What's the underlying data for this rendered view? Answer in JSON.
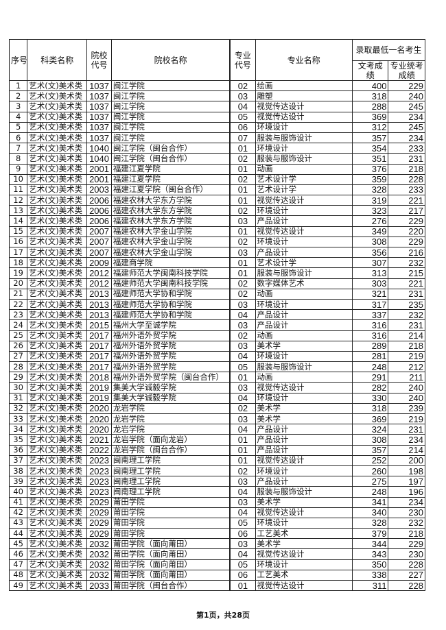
{
  "header": {
    "seq": "序号",
    "category": "科类名称",
    "school_code": "院校代号",
    "school_name": "院校名称",
    "major_code": "专业代号",
    "major_name": "专业名称",
    "group": "录取最低一名考生",
    "culture_score": "文考成绩",
    "art_score": "专业统考成绩"
  },
  "rows": [
    [
      "1",
      "艺术(文)美术类",
      "1037",
      "闽江学院",
      "02",
      "绘画",
      "400",
      "229"
    ],
    [
      "2",
      "艺术(文)美术类",
      "1037",
      "闽江学院",
      "03",
      "雕塑",
      "318",
      "240"
    ],
    [
      "3",
      "艺术(文)美术类",
      "1037",
      "闽江学院",
      "04",
      "视觉传达设计",
      "288",
      "245"
    ],
    [
      "4",
      "艺术(文)美术类",
      "1037",
      "闽江学院",
      "05",
      "视觉传达设计",
      "369",
      "234"
    ],
    [
      "5",
      "艺术(文)美术类",
      "1037",
      "闽江学院",
      "06",
      "环境设计",
      "312",
      "245"
    ],
    [
      "6",
      "艺术(文)美术类",
      "1037",
      "闽江学院",
      "07",
      "服装与服饰设计",
      "357",
      "234"
    ],
    [
      "7",
      "艺术(文)美术类",
      "1040",
      "闽江学院（闽台合作）",
      "01",
      "环境设计",
      "354",
      "233"
    ],
    [
      "8",
      "艺术(文)美术类",
      "1040",
      "闽江学院（闽台合作）",
      "02",
      "服装与服饰设计",
      "351",
      "231"
    ],
    [
      "9",
      "艺术(文)美术类",
      "2001",
      "福建江夏学院",
      "01",
      "动画",
      "376",
      "218"
    ],
    [
      "10",
      "艺术(文)美术类",
      "2001",
      "福建江夏学院",
      "02",
      "艺术设计学",
      "359",
      "228"
    ],
    [
      "11",
      "艺术(文)美术类",
      "2003",
      "福建江夏学院（闽台合作）",
      "01",
      "艺术设计学",
      "328",
      "233"
    ],
    [
      "12",
      "艺术(文)美术类",
      "2006",
      "福建农林大学东方学院",
      "01",
      "视觉传达设计",
      "319",
      "221"
    ],
    [
      "13",
      "艺术(文)美术类",
      "2006",
      "福建农林大学东方学院",
      "02",
      "环境设计",
      "323",
      "217"
    ],
    [
      "14",
      "艺术(文)美术类",
      "2006",
      "福建农林大学东方学院",
      "03",
      "产品设计",
      "276",
      "229"
    ],
    [
      "15",
      "艺术(文)美术类",
      "2007",
      "福建农林大学金山学院",
      "01",
      "视觉传达设计",
      "349",
      "220"
    ],
    [
      "16",
      "艺术(文)美术类",
      "2007",
      "福建农林大学金山学院",
      "02",
      "环境设计",
      "308",
      "229"
    ],
    [
      "17",
      "艺术(文)美术类",
      "2007",
      "福建农林大学金山学院",
      "03",
      "产品设计",
      "356",
      "216"
    ],
    [
      "18",
      "艺术(文)美术类",
      "2009",
      "福建商学院",
      "01",
      "艺术设计学",
      "307",
      "232"
    ],
    [
      "19",
      "艺术(文)美术类",
      "2012",
      "福建师范大学闽南科技学院",
      "01",
      "服装与服饰设计",
      "313",
      "215"
    ],
    [
      "20",
      "艺术(文)美术类",
      "2012",
      "福建师范大学闽南科技学院",
      "02",
      "数字媒体艺术",
      "303",
      "221"
    ],
    [
      "21",
      "艺术(文)美术类",
      "2013",
      "福建师范大学协和学院",
      "02",
      "动画",
      "321",
      "231"
    ],
    [
      "22",
      "艺术(文)美术类",
      "2013",
      "福建师范大学协和学院",
      "03",
      "环境设计",
      "317",
      "235"
    ],
    [
      "23",
      "艺术(文)美术类",
      "2013",
      "福建师范大学协和学院",
      "04",
      "产品设计",
      "337",
      "232"
    ],
    [
      "24",
      "艺术(文)美术类",
      "2015",
      "福州大学至诚学院",
      "03",
      "产品设计",
      "316",
      "231"
    ],
    [
      "25",
      "艺术(文)美术类",
      "2017",
      "福州外语外贸学院",
      "02",
      "动画",
      "316",
      "214"
    ],
    [
      "26",
      "艺术(文)美术类",
      "2017",
      "福州外语外贸学院",
      "03",
      "美术学",
      "289",
      "218"
    ],
    [
      "27",
      "艺术(文)美术类",
      "2017",
      "福州外语外贸学院",
      "04",
      "环境设计",
      "281",
      "219"
    ],
    [
      "28",
      "艺术(文)美术类",
      "2017",
      "福州外语外贸学院",
      "05",
      "服装与服饰设计",
      "248",
      "212"
    ],
    [
      "29",
      "艺术(文)美术类",
      "2018",
      "福州外语外贸学院（闽台合作）",
      "01",
      "动画",
      "291",
      "211"
    ],
    [
      "30",
      "艺术(文)美术类",
      "2019",
      "集美大学诚毅学院",
      "03",
      "视觉传达设计",
      "282",
      "240"
    ],
    [
      "31",
      "艺术(文)美术类",
      "2019",
      "集美大学诚毅学院",
      "04",
      "环境设计",
      "330",
      "240"
    ],
    [
      "32",
      "艺术(文)美术类",
      "2020",
      "龙岩学院",
      "02",
      "美术学",
      "318",
      "239"
    ],
    [
      "33",
      "艺术(文)美术类",
      "2020",
      "龙岩学院",
      "03",
      "美术学",
      "369",
      "219"
    ],
    [
      "34",
      "艺术(文)美术类",
      "2020",
      "龙岩学院",
      "04",
      "产品设计",
      "324",
      "231"
    ],
    [
      "35",
      "艺术(文)美术类",
      "2021",
      "龙岩学院（面向龙岩）",
      "01",
      "产品设计",
      "308",
      "234"
    ],
    [
      "36",
      "艺术(文)美术类",
      "2022",
      "龙岩学院（闽台合作）",
      "01",
      "产品设计",
      "357",
      "214"
    ],
    [
      "37",
      "艺术(文)美术类",
      "2023",
      "闽南理工学院",
      "01",
      "视觉传达设计",
      "252",
      "200"
    ],
    [
      "38",
      "艺术(文)美术类",
      "2023",
      "闽南理工学院",
      "02",
      "环境设计",
      "260",
      "198"
    ],
    [
      "39",
      "艺术(文)美术类",
      "2023",
      "闽南理工学院",
      "03",
      "产品设计",
      "275",
      "197"
    ],
    [
      "40",
      "艺术(文)美术类",
      "2023",
      "闽南理工学院",
      "04",
      "服装与服饰设计",
      "248",
      "196"
    ],
    [
      "41",
      "艺术(文)美术类",
      "2029",
      "莆田学院",
      "03",
      "美术学",
      "341",
      "234"
    ],
    [
      "42",
      "艺术(文)美术类",
      "2029",
      "莆田学院",
      "04",
      "视觉传达设计",
      "340",
      "230"
    ],
    [
      "43",
      "艺术(文)美术类",
      "2029",
      "莆田学院",
      "05",
      "环境设计",
      "328",
      "232"
    ],
    [
      "44",
      "艺术(文)美术类",
      "2029",
      "莆田学院",
      "06",
      "工艺美术",
      "379",
      "218"
    ],
    [
      "45",
      "艺术(文)美术类",
      "2032",
      "莆田学院（面向莆田）",
      "03",
      "美术学",
      "344",
      "229"
    ],
    [
      "46",
      "艺术(文)美术类",
      "2032",
      "莆田学院（面向莆田）",
      "04",
      "视觉传达设计",
      "343",
      "230"
    ],
    [
      "47",
      "艺术(文)美术类",
      "2032",
      "莆田学院（面向莆田）",
      "05",
      "环境设计",
      "350",
      "228"
    ],
    [
      "48",
      "艺术(文)美术类",
      "2032",
      "莆田学院（面向莆田）",
      "06",
      "工艺美术",
      "338",
      "227"
    ],
    [
      "49",
      "艺术(文)美术类",
      "2033",
      "莆田学院（闽台合作）",
      "01",
      "视觉传达设计",
      "311",
      "228"
    ]
  ],
  "footer": "第1页，共28页"
}
